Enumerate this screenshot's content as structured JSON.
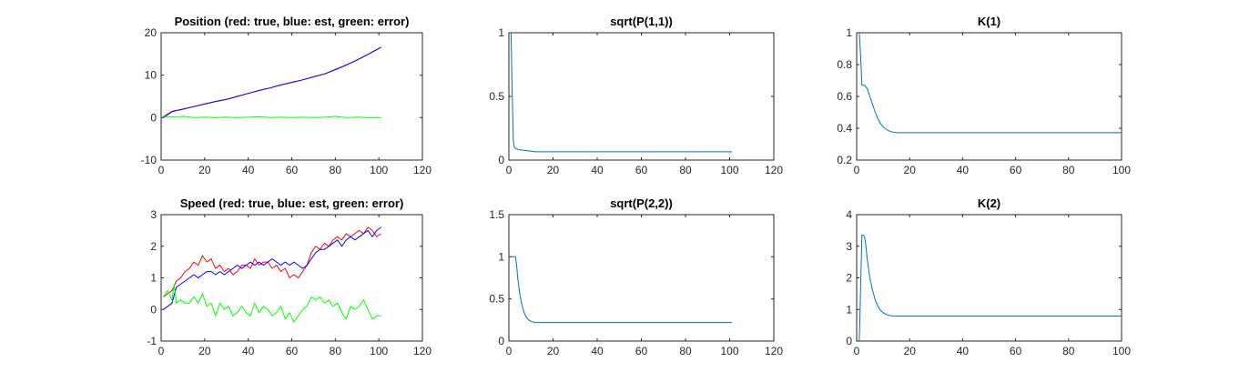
{
  "chart_data": [
    {
      "type": "line",
      "title": "Position (red: true, blue: est, green: error)",
      "xlim": [
        0,
        120
      ],
      "ylim": [
        -10,
        20
      ],
      "xticks": [
        0,
        20,
        40,
        60,
        80,
        100,
        120
      ],
      "yticks": [
        -10,
        0,
        10,
        20
      ],
      "series": [
        {
          "color": "#ff0000",
          "x": [
            1,
            5,
            10,
            15,
            20,
            25,
            30,
            35,
            40,
            45,
            50,
            55,
            60,
            65,
            70,
            75,
            80,
            85,
            90,
            95,
            101
          ],
          "values": [
            0.2,
            1.5,
            2.0,
            2.6,
            3.2,
            3.8,
            4.3,
            5.0,
            5.7,
            6.4,
            7.0,
            7.7,
            8.3,
            8.9,
            9.6,
            10.3,
            11.3,
            12.4,
            13.6,
            14.9,
            16.6
          ]
        },
        {
          "color": "#0000ff",
          "x": [
            1,
            5,
            10,
            15,
            20,
            25,
            30,
            35,
            40,
            45,
            50,
            55,
            60,
            65,
            70,
            75,
            80,
            85,
            90,
            95,
            101
          ],
          "values": [
            0.0,
            1.4,
            2.0,
            2.6,
            3.2,
            3.8,
            4.3,
            5.0,
            5.7,
            6.4,
            7.0,
            7.7,
            8.3,
            8.9,
            9.6,
            10.3,
            11.3,
            12.4,
            13.6,
            14.9,
            16.6
          ]
        },
        {
          "color": "#00ff00",
          "x": [
            1,
            3,
            5,
            8,
            10,
            13,
            16,
            20,
            25,
            30,
            35,
            40,
            45,
            50,
            55,
            60,
            65,
            70,
            75,
            78,
            80,
            83,
            86,
            90,
            95,
            101
          ],
          "values": [
            0.5,
            0.1,
            0.2,
            0.1,
            0.3,
            0.1,
            0.0,
            0.1,
            0.0,
            0.1,
            0.0,
            0.1,
            0.2,
            0.0,
            0.1,
            0.0,
            0.1,
            0.0,
            0.1,
            0.2,
            0.3,
            0.1,
            0.0,
            0.1,
            0.0,
            0.0
          ]
        }
      ]
    },
    {
      "type": "line",
      "title": "sqrt(P(1,1))",
      "xlim": [
        0,
        120
      ],
      "ylim": [
        0,
        1
      ],
      "xticks": [
        0,
        20,
        40,
        60,
        80,
        100,
        120
      ],
      "yticks": [
        0,
        0.5,
        1
      ],
      "series": [
        {
          "color": "#0072bd",
          "x": [
            1,
            1.4,
            2,
            2.5,
            3,
            5,
            8,
            10,
            12,
            15,
            20,
            40,
            60,
            80,
            101
          ],
          "values": [
            1.0,
            0.6,
            0.15,
            0.1,
            0.09,
            0.08,
            0.075,
            0.07,
            0.065,
            0.065,
            0.065,
            0.065,
            0.065,
            0.065,
            0.065
          ]
        }
      ]
    },
    {
      "type": "line",
      "title": "K(1)",
      "xlim": [
        0,
        100
      ],
      "ylim": [
        0.2,
        1
      ],
      "xticks": [
        0,
        20,
        40,
        60,
        80,
        100
      ],
      "yticks": [
        0.2,
        0.4,
        0.6,
        0.8,
        1
      ],
      "series": [
        {
          "color": "#0072bd",
          "x": [
            1,
            1.5,
            2,
            3,
            4,
            5,
            6,
            7,
            8,
            9,
            10,
            11,
            12,
            13,
            14,
            15,
            20,
            40,
            60,
            80,
            100
          ],
          "values": [
            1.0,
            0.85,
            0.67,
            0.67,
            0.65,
            0.6,
            0.55,
            0.5,
            0.46,
            0.43,
            0.41,
            0.395,
            0.385,
            0.378,
            0.375,
            0.372,
            0.372,
            0.372,
            0.372,
            0.372,
            0.372
          ]
        }
      ]
    },
    {
      "type": "line",
      "title": "Speed (red: true, blue: est, green: error)",
      "xlim": [
        0,
        120
      ],
      "ylim": [
        -1,
        3
      ],
      "xticks": [
        0,
        20,
        40,
        60,
        80,
        100,
        120
      ],
      "yticks": [
        -1,
        0,
        1,
        2,
        3
      ],
      "series": [
        {
          "color": "#ff0000",
          "x": [
            1,
            3,
            5,
            7,
            9,
            11,
            13,
            15,
            17,
            19,
            21,
            23,
            25,
            27,
            29,
            31,
            33,
            35,
            37,
            39,
            41,
            43,
            45,
            47,
            49,
            51,
            53,
            55,
            57,
            59,
            61,
            63,
            65,
            67,
            69,
            71,
            73,
            75,
            77,
            79,
            81,
            83,
            85,
            87,
            89,
            91,
            93,
            95,
            97,
            99,
            101
          ],
          "values": [
            0.4,
            0.5,
            0.6,
            0.9,
            1.0,
            1.2,
            1.3,
            1.5,
            1.4,
            1.7,
            1.5,
            1.6,
            1.3,
            1.4,
            1.2,
            1.3,
            1.1,
            1.2,
            1.4,
            1.4,
            1.3,
            1.6,
            1.4,
            1.5,
            1.5,
            1.3,
            1.4,
            1.2,
            1.3,
            1.0,
            1.1,
            1.0,
            1.2,
            1.4,
            1.8,
            2.0,
            1.9,
            2.1,
            2.0,
            2.2,
            2.3,
            2.2,
            2.4,
            2.3,
            2.4,
            2.5,
            2.4,
            2.6,
            2.5,
            2.3,
            2.4
          ]
        },
        {
          "color": "#0000ff",
          "x": [
            1,
            3,
            5,
            7,
            9,
            11,
            13,
            15,
            17,
            19,
            21,
            23,
            25,
            27,
            29,
            31,
            33,
            35,
            37,
            39,
            41,
            43,
            45,
            47,
            49,
            51,
            53,
            55,
            57,
            59,
            61,
            63,
            65,
            67,
            69,
            71,
            73,
            75,
            77,
            79,
            81,
            83,
            85,
            87,
            89,
            91,
            93,
            95,
            97,
            99,
            101
          ],
          "values": [
            0.0,
            0.1,
            0.2,
            0.7,
            0.8,
            0.9,
            1.0,
            1.1,
            1.0,
            1.1,
            1.2,
            1.2,
            1.1,
            1.2,
            1.1,
            1.2,
            1.3,
            1.4,
            1.3,
            1.4,
            1.5,
            1.4,
            1.5,
            1.4,
            1.5,
            1.6,
            1.5,
            1.4,
            1.5,
            1.4,
            1.5,
            1.4,
            1.3,
            1.4,
            1.6,
            1.8,
            1.9,
            1.9,
            2.0,
            2.1,
            2.2,
            2.0,
            2.2,
            2.3,
            2.2,
            2.3,
            2.4,
            2.5,
            2.3,
            2.5,
            2.6
          ]
        },
        {
          "color": "#00ff00",
          "x": [
            1,
            3,
            5,
            6,
            7,
            9,
            11,
            13,
            15,
            17,
            19,
            21,
            23,
            25,
            27,
            29,
            31,
            33,
            35,
            37,
            39,
            41,
            43,
            45,
            47,
            49,
            51,
            53,
            55,
            57,
            59,
            61,
            63,
            65,
            67,
            69,
            71,
            73,
            75,
            77,
            79,
            81,
            83,
            85,
            87,
            89,
            91,
            93,
            95,
            97,
            99,
            101
          ],
          "values": [
            0.4,
            0.6,
            0.3,
            0.8,
            0.2,
            0.3,
            0.2,
            0.2,
            0.4,
            0.2,
            0.5,
            0.1,
            0.2,
            -0.2,
            0.2,
            0.0,
            0.1,
            -0.2,
            -0.1,
            0.1,
            -0.1,
            -0.2,
            0.2,
            -0.1,
            0.1,
            0.0,
            -0.2,
            -0.1,
            0.1,
            -0.3,
            -0.1,
            -0.4,
            -0.2,
            0.0,
            0.1,
            0.4,
            0.3,
            0.4,
            0.2,
            0.3,
            0.1,
            0.2,
            -0.1,
            -0.3,
            0.1,
            0.0,
            0.1,
            0.3,
            0.0,
            -0.3,
            -0.2,
            -0.2
          ]
        }
      ]
    },
    {
      "type": "line",
      "title": "sqrt(P(2,2))",
      "xlim": [
        0,
        120
      ],
      "ylim": [
        0,
        1.5
      ],
      "xticks": [
        0,
        20,
        40,
        60,
        80,
        100,
        120
      ],
      "yticks": [
        0,
        0.5,
        1,
        1.5
      ],
      "series": [
        {
          "color": "#0072bd",
          "x": [
            1,
            2,
            3,
            3.5,
            4,
            5,
            6,
            7,
            8,
            9,
            10,
            11,
            12,
            15,
            20,
            40,
            60,
            80,
            101
          ],
          "values": [
            1.0,
            1.0,
            1.0,
            0.9,
            0.75,
            0.55,
            0.42,
            0.33,
            0.28,
            0.25,
            0.235,
            0.225,
            0.22,
            0.22,
            0.22,
            0.22,
            0.22,
            0.22,
            0.22
          ]
        }
      ]
    },
    {
      "type": "line",
      "title": "K(2)",
      "xlim": [
        0,
        100
      ],
      "ylim": [
        0,
        4
      ],
      "xticks": [
        0,
        20,
        40,
        60,
        80,
        100
      ],
      "yticks": [
        0,
        1,
        2,
        3,
        4
      ],
      "series": [
        {
          "color": "#0072bd",
          "x": [
            1,
            2,
            2.5,
            3,
            3.5,
            4,
            5,
            6,
            7,
            8,
            9,
            10,
            11,
            12,
            13,
            15,
            20,
            40,
            60,
            80,
            100
          ],
          "values": [
            0.0,
            3.35,
            3.35,
            3.3,
            3.0,
            2.6,
            2.0,
            1.6,
            1.3,
            1.1,
            0.97,
            0.9,
            0.85,
            0.82,
            0.8,
            0.79,
            0.79,
            0.79,
            0.79,
            0.79,
            0.79
          ]
        }
      ]
    }
  ]
}
